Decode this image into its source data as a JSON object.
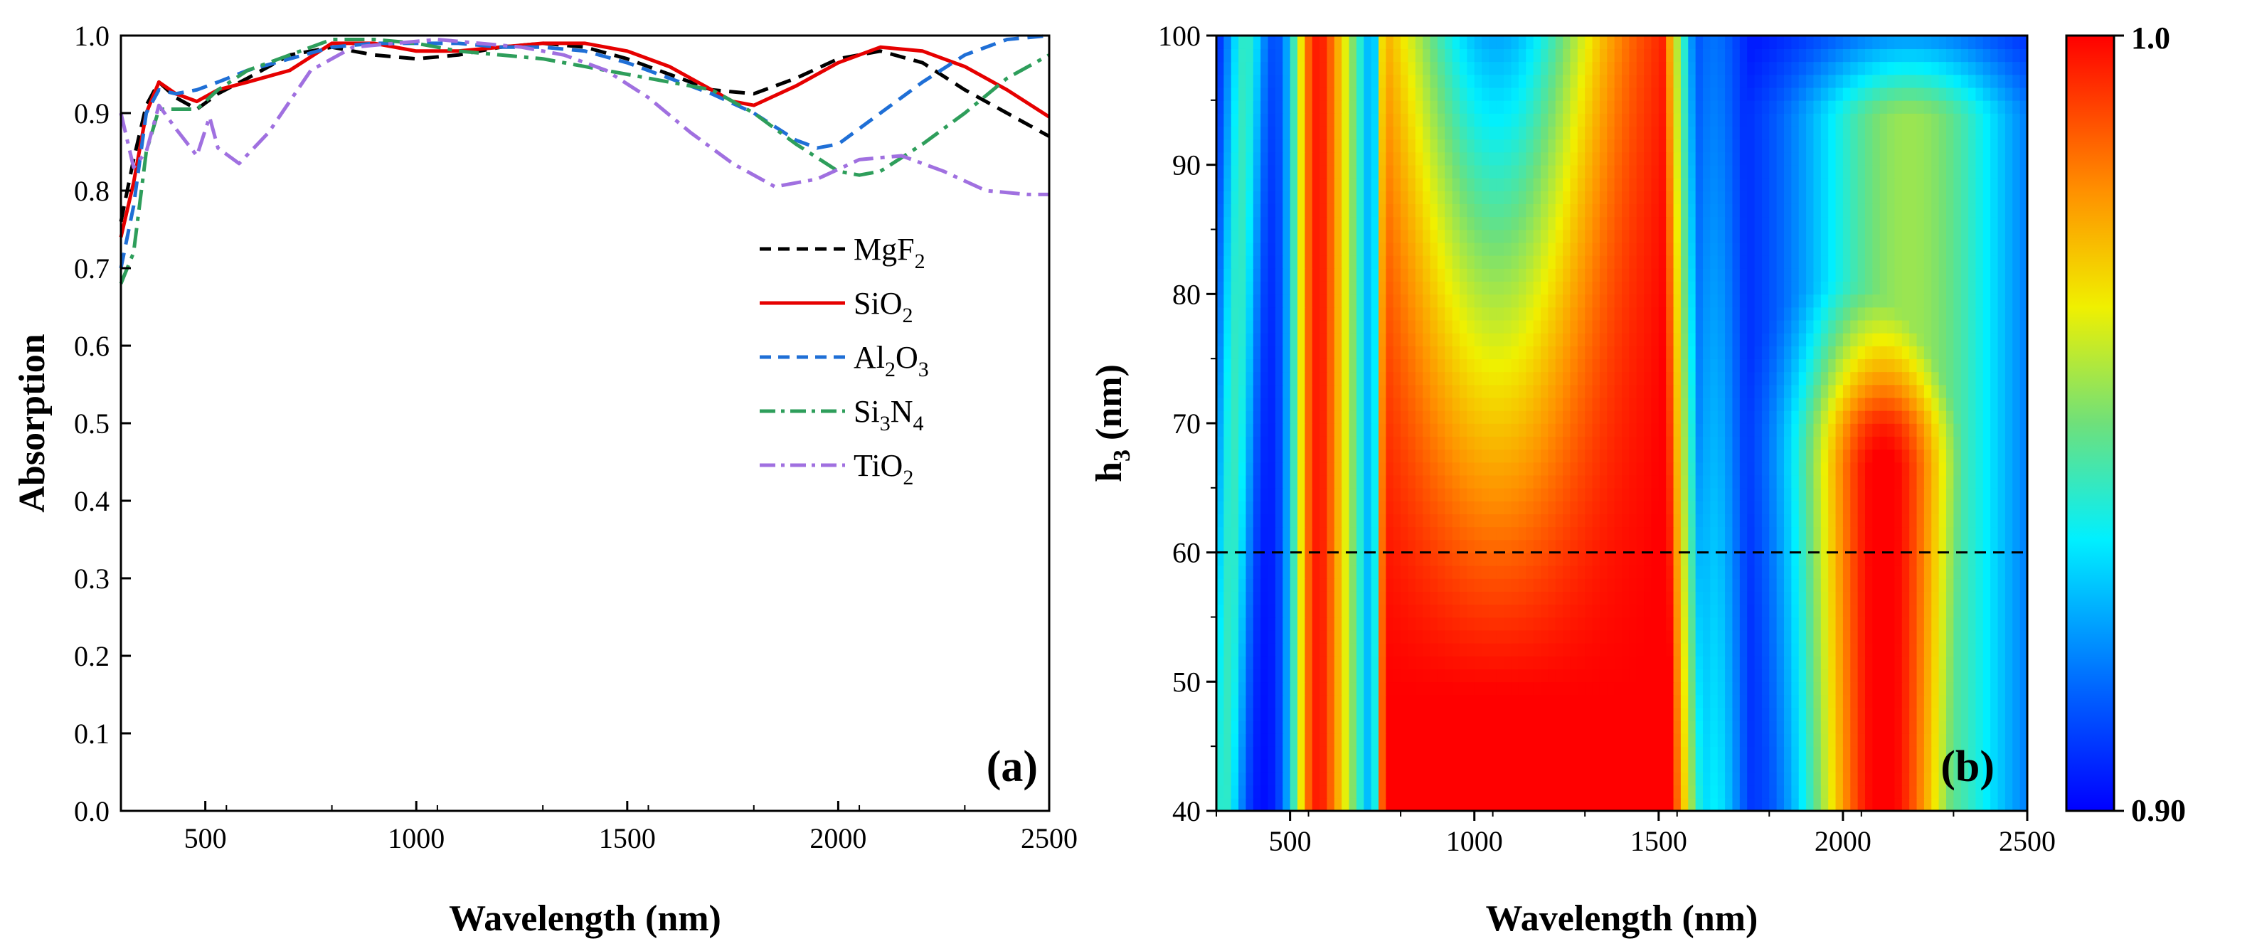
{
  "chart_data": [
    {
      "type": "line",
      "panel_label": "(a)",
      "xlabel": "Wavelength (nm)",
      "ylabel": "Absorption",
      "xlim": [
        300,
        2500
      ],
      "ylim": [
        0.0,
        1.0
      ],
      "x_ticks": [
        500,
        1000,
        1500,
        2000,
        2500
      ],
      "y_ticks": [
        "0.0",
        "0.1",
        "0.2",
        "0.3",
        "0.4",
        "0.5",
        "0.6",
        "0.7",
        "0.8",
        "0.9",
        "1.0"
      ],
      "highlight_tick": "0.9",
      "highlight_color": "#e60000",
      "legend_position": "center-right",
      "series": [
        {
          "name": "MgF2",
          "base": "MgF",
          "sub": "2",
          "sub2": "",
          "base2": "",
          "color": "#000000",
          "dash": "dash",
          "x": [
            300,
            330,
            360,
            390,
            430,
            480,
            530,
            600,
            700,
            800,
            900,
            1000,
            1100,
            1200,
            1300,
            1400,
            1500,
            1600,
            1700,
            1800,
            1900,
            2000,
            2100,
            2200,
            2300,
            2400,
            2500
          ],
          "y": [
            0.76,
            0.84,
            0.91,
            0.94,
            0.92,
            0.905,
            0.925,
            0.945,
            0.975,
            0.985,
            0.975,
            0.97,
            0.975,
            0.985,
            0.99,
            0.985,
            0.97,
            0.95,
            0.93,
            0.925,
            0.945,
            0.97,
            0.98,
            0.965,
            0.93,
            0.9,
            0.87
          ]
        },
        {
          "name": "SiO2",
          "base": "SiO",
          "sub": "2",
          "sub2": "",
          "base2": "",
          "color": "#e60000",
          "dash": "solid",
          "x": [
            300,
            330,
            360,
            390,
            430,
            480,
            530,
            600,
            700,
            800,
            900,
            1000,
            1100,
            1200,
            1300,
            1400,
            1500,
            1600,
            1700,
            1750,
            1800,
            1900,
            2000,
            2100,
            2200,
            2300,
            2400,
            2500
          ],
          "y": [
            0.74,
            0.81,
            0.9,
            0.94,
            0.925,
            0.915,
            0.93,
            0.94,
            0.955,
            0.99,
            0.99,
            0.98,
            0.98,
            0.985,
            0.99,
            0.99,
            0.98,
            0.96,
            0.93,
            0.915,
            0.91,
            0.935,
            0.965,
            0.985,
            0.98,
            0.96,
            0.93,
            0.895
          ]
        },
        {
          "name": "Al2O3",
          "base": "Al",
          "sub": "2",
          "base2": "O",
          "sub2": "3",
          "color": "#1f6fd6",
          "dash": "dash",
          "x": [
            300,
            330,
            360,
            390,
            430,
            480,
            530,
            600,
            700,
            800,
            900,
            1000,
            1100,
            1200,
            1300,
            1400,
            1500,
            1600,
            1700,
            1800,
            1900,
            1950,
            2000,
            2100,
            2200,
            2300,
            2400,
            2500
          ],
          "y": [
            0.7,
            0.78,
            0.9,
            0.93,
            0.925,
            0.93,
            0.94,
            0.955,
            0.97,
            0.985,
            0.99,
            0.99,
            0.99,
            0.985,
            0.985,
            0.98,
            0.965,
            0.945,
            0.925,
            0.9,
            0.865,
            0.855,
            0.86,
            0.9,
            0.94,
            0.975,
            0.995,
            1.0
          ]
        },
        {
          "name": "Si3N4",
          "base": "Si",
          "sub": "3",
          "base2": "N",
          "sub2": "4",
          "color": "#2e9e5b",
          "dash": "dashdot",
          "x": [
            300,
            330,
            360,
            390,
            430,
            480,
            530,
            600,
            700,
            800,
            900,
            1000,
            1100,
            1200,
            1300,
            1400,
            1500,
            1600,
            1700,
            1800,
            1900,
            2000,
            2050,
            2100,
            2200,
            2300,
            2400,
            2500
          ],
          "y": [
            0.68,
            0.72,
            0.85,
            0.905,
            0.905,
            0.905,
            0.93,
            0.955,
            0.975,
            0.995,
            0.995,
            0.99,
            0.98,
            0.975,
            0.97,
            0.96,
            0.95,
            0.94,
            0.93,
            0.9,
            0.86,
            0.825,
            0.82,
            0.825,
            0.86,
            0.9,
            0.945,
            0.975
          ]
        },
        {
          "name": "TiO2",
          "base": "TiO",
          "sub": "2",
          "sub2": "",
          "base2": "",
          "color": "#a070e0",
          "dash": "dashdot",
          "x": [
            300,
            330,
            360,
            390,
            430,
            480,
            510,
            530,
            580,
            650,
            750,
            850,
            950,
            1050,
            1150,
            1250,
            1350,
            1450,
            1550,
            1650,
            1750,
            1850,
            1950,
            2050,
            2150,
            2250,
            2350,
            2450,
            2500
          ],
          "y": [
            0.9,
            0.83,
            0.85,
            0.91,
            0.88,
            0.845,
            0.895,
            0.855,
            0.835,
            0.875,
            0.955,
            0.985,
            0.99,
            0.995,
            0.99,
            0.985,
            0.975,
            0.955,
            0.92,
            0.875,
            0.835,
            0.805,
            0.815,
            0.84,
            0.845,
            0.825,
            0.8,
            0.795,
            0.795
          ]
        }
      ]
    },
    {
      "type": "heatmap",
      "panel_label": "(b)",
      "xlabel": "Wavelength (nm)",
      "ylabel_main": "h",
      "ylabel_sub": "3",
      "ylabel_rest": " (nm)",
      "xlim": [
        300,
        2500
      ],
      "ylim": [
        40,
        100
      ],
      "x_ticks": [
        500,
        1000,
        1500,
        2000,
        2500
      ],
      "y_ticks": [
        "40",
        "50",
        "60",
        "70",
        "80",
        "90",
        "100"
      ],
      "highlight_tick": "60",
      "highlight_color": "#e60000",
      "reference_line": {
        "y": 60,
        "style": "dashed",
        "color": "#000000"
      },
      "colorbar": {
        "min": 0.9,
        "max": 1.0,
        "labels": [
          "1.0",
          "0.90"
        ],
        "colormap": "jet"
      },
      "z_description_sample": {
        "h3_values": [
          40,
          60,
          80,
          100
        ],
        "wavelengths": [
          500,
          900,
          1400,
          2100
        ],
        "z_at_h60": [
          0.97,
          0.99,
          0.995,
          0.99
        ]
      }
    }
  ]
}
